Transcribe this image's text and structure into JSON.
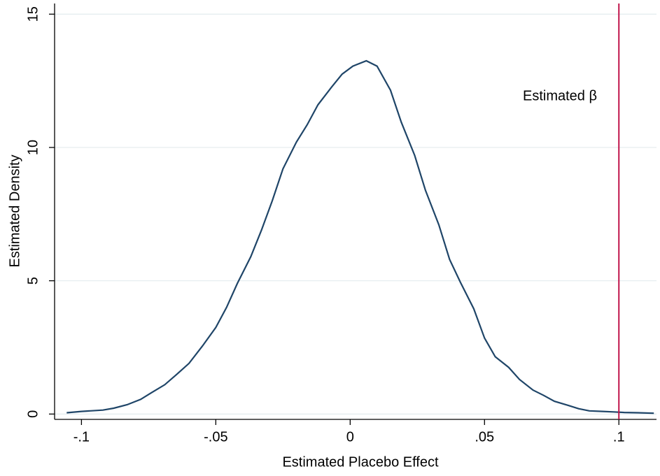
{
  "chart_data": {
    "type": "line",
    "x_label": "Estimated Placebo Effect",
    "y_label": "Estimated Density",
    "annotation": "Estimated β",
    "vline": 0.1,
    "vline_color": "#c0134a",
    "color": "#1f4568",
    "grid": true,
    "xlim": [
      -0.11,
      0.114
    ],
    "ylim": [
      -0.2,
      15.4
    ],
    "xticks": [
      {
        "value": -0.1,
        "label": "-.1"
      },
      {
        "value": -0.05,
        "label": "-.05"
      },
      {
        "value": 0,
        "label": "0"
      },
      {
        "value": 0.05,
        "label": ".05"
      },
      {
        "value": 0.1,
        "label": ".1"
      }
    ],
    "yticks": [
      0,
      5,
      10,
      15
    ],
    "x": [
      -0.1055,
      -0.1,
      -0.092,
      -0.088,
      -0.083,
      -0.078,
      -0.074,
      -0.069,
      -0.065,
      -0.06,
      -0.055,
      -0.05,
      -0.046,
      -0.042,
      -0.037,
      -0.033,
      -0.029,
      -0.025,
      -0.02,
      -0.016,
      -0.012,
      -0.007,
      -0.003,
      0.001,
      0.006,
      0.01,
      0.015,
      0.019,
      0.024,
      0.028,
      0.033,
      0.037,
      0.041,
      0.046,
      0.05,
      0.054,
      0.059,
      0.063,
      0.068,
      0.072,
      0.076,
      0.081,
      0.085,
      0.089,
      0.094,
      0.098,
      0.102,
      0.107,
      0.113
    ],
    "values": [
      0.05,
      0.1,
      0.15,
      0.22,
      0.35,
      0.55,
      0.8,
      1.1,
      1.45,
      1.9,
      2.55,
      3.25,
      4.0,
      4.9,
      5.9,
      6.9,
      8.0,
      9.2,
      10.2,
      10.85,
      11.6,
      12.25,
      12.75,
      13.05,
      13.25,
      13.05,
      12.15,
      10.95,
      9.7,
      8.4,
      7.1,
      5.8,
      4.95,
      3.95,
      2.85,
      2.15,
      1.75,
      1.3,
      0.9,
      0.7,
      0.48,
      0.33,
      0.2,
      0.12,
      0.1,
      0.08,
      0.06,
      0.05,
      0.03
    ]
  }
}
